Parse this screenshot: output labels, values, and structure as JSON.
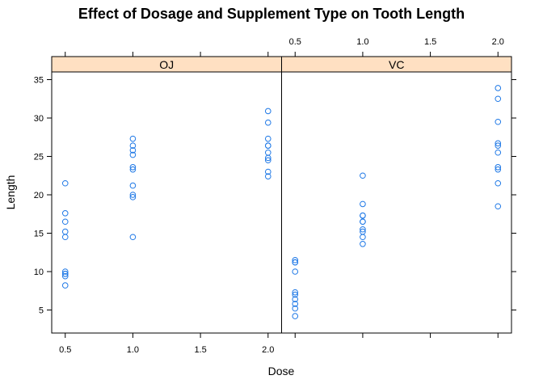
{
  "chart_data": {
    "type": "scatter",
    "layout": "trellis",
    "title": "Effect of Dosage and Supplement Type on Tooth Length",
    "xlabel": "Dose",
    "ylabel": "Length",
    "xlim": [
      0.4,
      2.1
    ],
    "ylim": [
      2.0,
      36.0
    ],
    "x_ticks": [
      0.5,
      1.0,
      1.5,
      2.0
    ],
    "x_tick_labels": [
      "0.5",
      "1.0",
      "1.5",
      "2.0"
    ],
    "y_ticks": [
      5,
      10,
      15,
      20,
      25,
      30,
      35
    ],
    "y_tick_labels": [
      "5",
      "10",
      "15",
      "20",
      "25",
      "30",
      "35"
    ],
    "marker_color": "#1E78E6",
    "strip_color": "#FFE0C2",
    "panels": [
      {
        "strip": "OJ",
        "points": [
          {
            "x": 0.5,
            "y": 15.2
          },
          {
            "x": 0.5,
            "y": 21.5
          },
          {
            "x": 0.5,
            "y": 17.6
          },
          {
            "x": 0.5,
            "y": 9.7
          },
          {
            "x": 0.5,
            "y": 14.5
          },
          {
            "x": 0.5,
            "y": 10.0
          },
          {
            "x": 0.5,
            "y": 8.2
          },
          {
            "x": 0.5,
            "y": 9.4
          },
          {
            "x": 0.5,
            "y": 16.5
          },
          {
            "x": 0.5,
            "y": 9.7
          },
          {
            "x": 1.0,
            "y": 19.7
          },
          {
            "x": 1.0,
            "y": 23.3
          },
          {
            "x": 1.0,
            "y": 23.6
          },
          {
            "x": 1.0,
            "y": 26.4
          },
          {
            "x": 1.0,
            "y": 20.0
          },
          {
            "x": 1.0,
            "y": 25.2
          },
          {
            "x": 1.0,
            "y": 25.8
          },
          {
            "x": 1.0,
            "y": 21.2
          },
          {
            "x": 1.0,
            "y": 14.5
          },
          {
            "x": 1.0,
            "y": 27.3
          },
          {
            "x": 2.0,
            "y": 25.5
          },
          {
            "x": 2.0,
            "y": 26.4
          },
          {
            "x": 2.0,
            "y": 22.4
          },
          {
            "x": 2.0,
            "y": 24.5
          },
          {
            "x": 2.0,
            "y": 24.8
          },
          {
            "x": 2.0,
            "y": 30.9
          },
          {
            "x": 2.0,
            "y": 26.4
          },
          {
            "x": 2.0,
            "y": 27.3
          },
          {
            "x": 2.0,
            "y": 29.4
          },
          {
            "x": 2.0,
            "y": 23.0
          }
        ]
      },
      {
        "strip": "VC",
        "points": [
          {
            "x": 0.5,
            "y": 4.2
          },
          {
            "x": 0.5,
            "y": 11.5
          },
          {
            "x": 0.5,
            "y": 7.3
          },
          {
            "x": 0.5,
            "y": 5.8
          },
          {
            "x": 0.5,
            "y": 6.4
          },
          {
            "x": 0.5,
            "y": 10.0
          },
          {
            "x": 0.5,
            "y": 11.2
          },
          {
            "x": 0.5,
            "y": 11.2
          },
          {
            "x": 0.5,
            "y": 5.2
          },
          {
            "x": 0.5,
            "y": 7.0
          },
          {
            "x": 1.0,
            "y": 16.5
          },
          {
            "x": 1.0,
            "y": 16.5
          },
          {
            "x": 1.0,
            "y": 15.2
          },
          {
            "x": 1.0,
            "y": 17.3
          },
          {
            "x": 1.0,
            "y": 22.5
          },
          {
            "x": 1.0,
            "y": 17.3
          },
          {
            "x": 1.0,
            "y": 13.6
          },
          {
            "x": 1.0,
            "y": 14.5
          },
          {
            "x": 1.0,
            "y": 18.8
          },
          {
            "x": 1.0,
            "y": 15.5
          },
          {
            "x": 2.0,
            "y": 23.6
          },
          {
            "x": 2.0,
            "y": 18.5
          },
          {
            "x": 2.0,
            "y": 33.9
          },
          {
            "x": 2.0,
            "y": 25.5
          },
          {
            "x": 2.0,
            "y": 26.4
          },
          {
            "x": 2.0,
            "y": 32.5
          },
          {
            "x": 2.0,
            "y": 26.7
          },
          {
            "x": 2.0,
            "y": 21.5
          },
          {
            "x": 2.0,
            "y": 23.3
          },
          {
            "x": 2.0,
            "y": 29.5
          }
        ]
      }
    ]
  }
}
